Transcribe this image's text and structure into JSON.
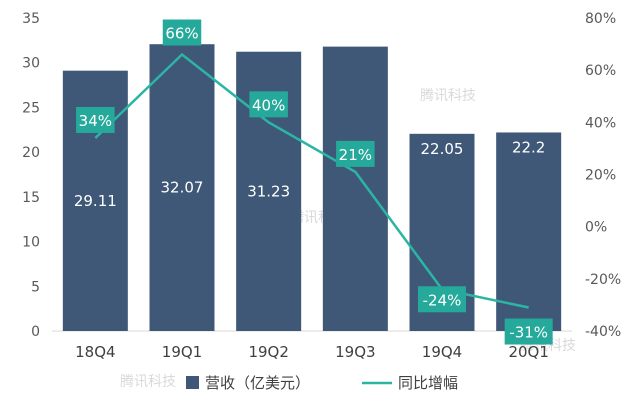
{
  "chart_data": {
    "type": "bar",
    "categories": [
      "18Q4",
      "19Q1",
      "19Q2",
      "19Q3",
      "19Q4",
      "20Q1"
    ],
    "series": [
      {
        "name": "营收（亿美元）",
        "type": "bar",
        "axis": "left",
        "values": [
          29.11,
          32.07,
          31.23,
          31.8,
          22.05,
          22.2
        ],
        "labels": [
          "29.11",
          "32.07",
          "31.23",
          "",
          "22.05",
          "22.2"
        ]
      },
      {
        "name": "同比增幅",
        "type": "line",
        "axis": "right",
        "values": [
          34,
          66,
          40,
          21,
          -24,
          -31
        ],
        "labels": [
          "34%",
          "66%",
          "40%",
          "21%",
          "-24%",
          "-31%"
        ]
      }
    ],
    "y_left": {
      "min": 0,
      "max": 35,
      "ticks": [
        "0",
        "5",
        "10",
        "15",
        "20",
        "25",
        "30",
        "35"
      ]
    },
    "y_right": {
      "min": -40,
      "max": 80,
      "ticks": [
        "-40%",
        "-20%",
        "0%",
        "20%",
        "40%",
        "60%",
        "80%"
      ]
    },
    "legend_position": "bottom",
    "colors": {
      "bar": "#3f5877",
      "line": "#2bb5a5",
      "label_box": "#25a99a"
    },
    "watermark": "腾讯科技"
  }
}
